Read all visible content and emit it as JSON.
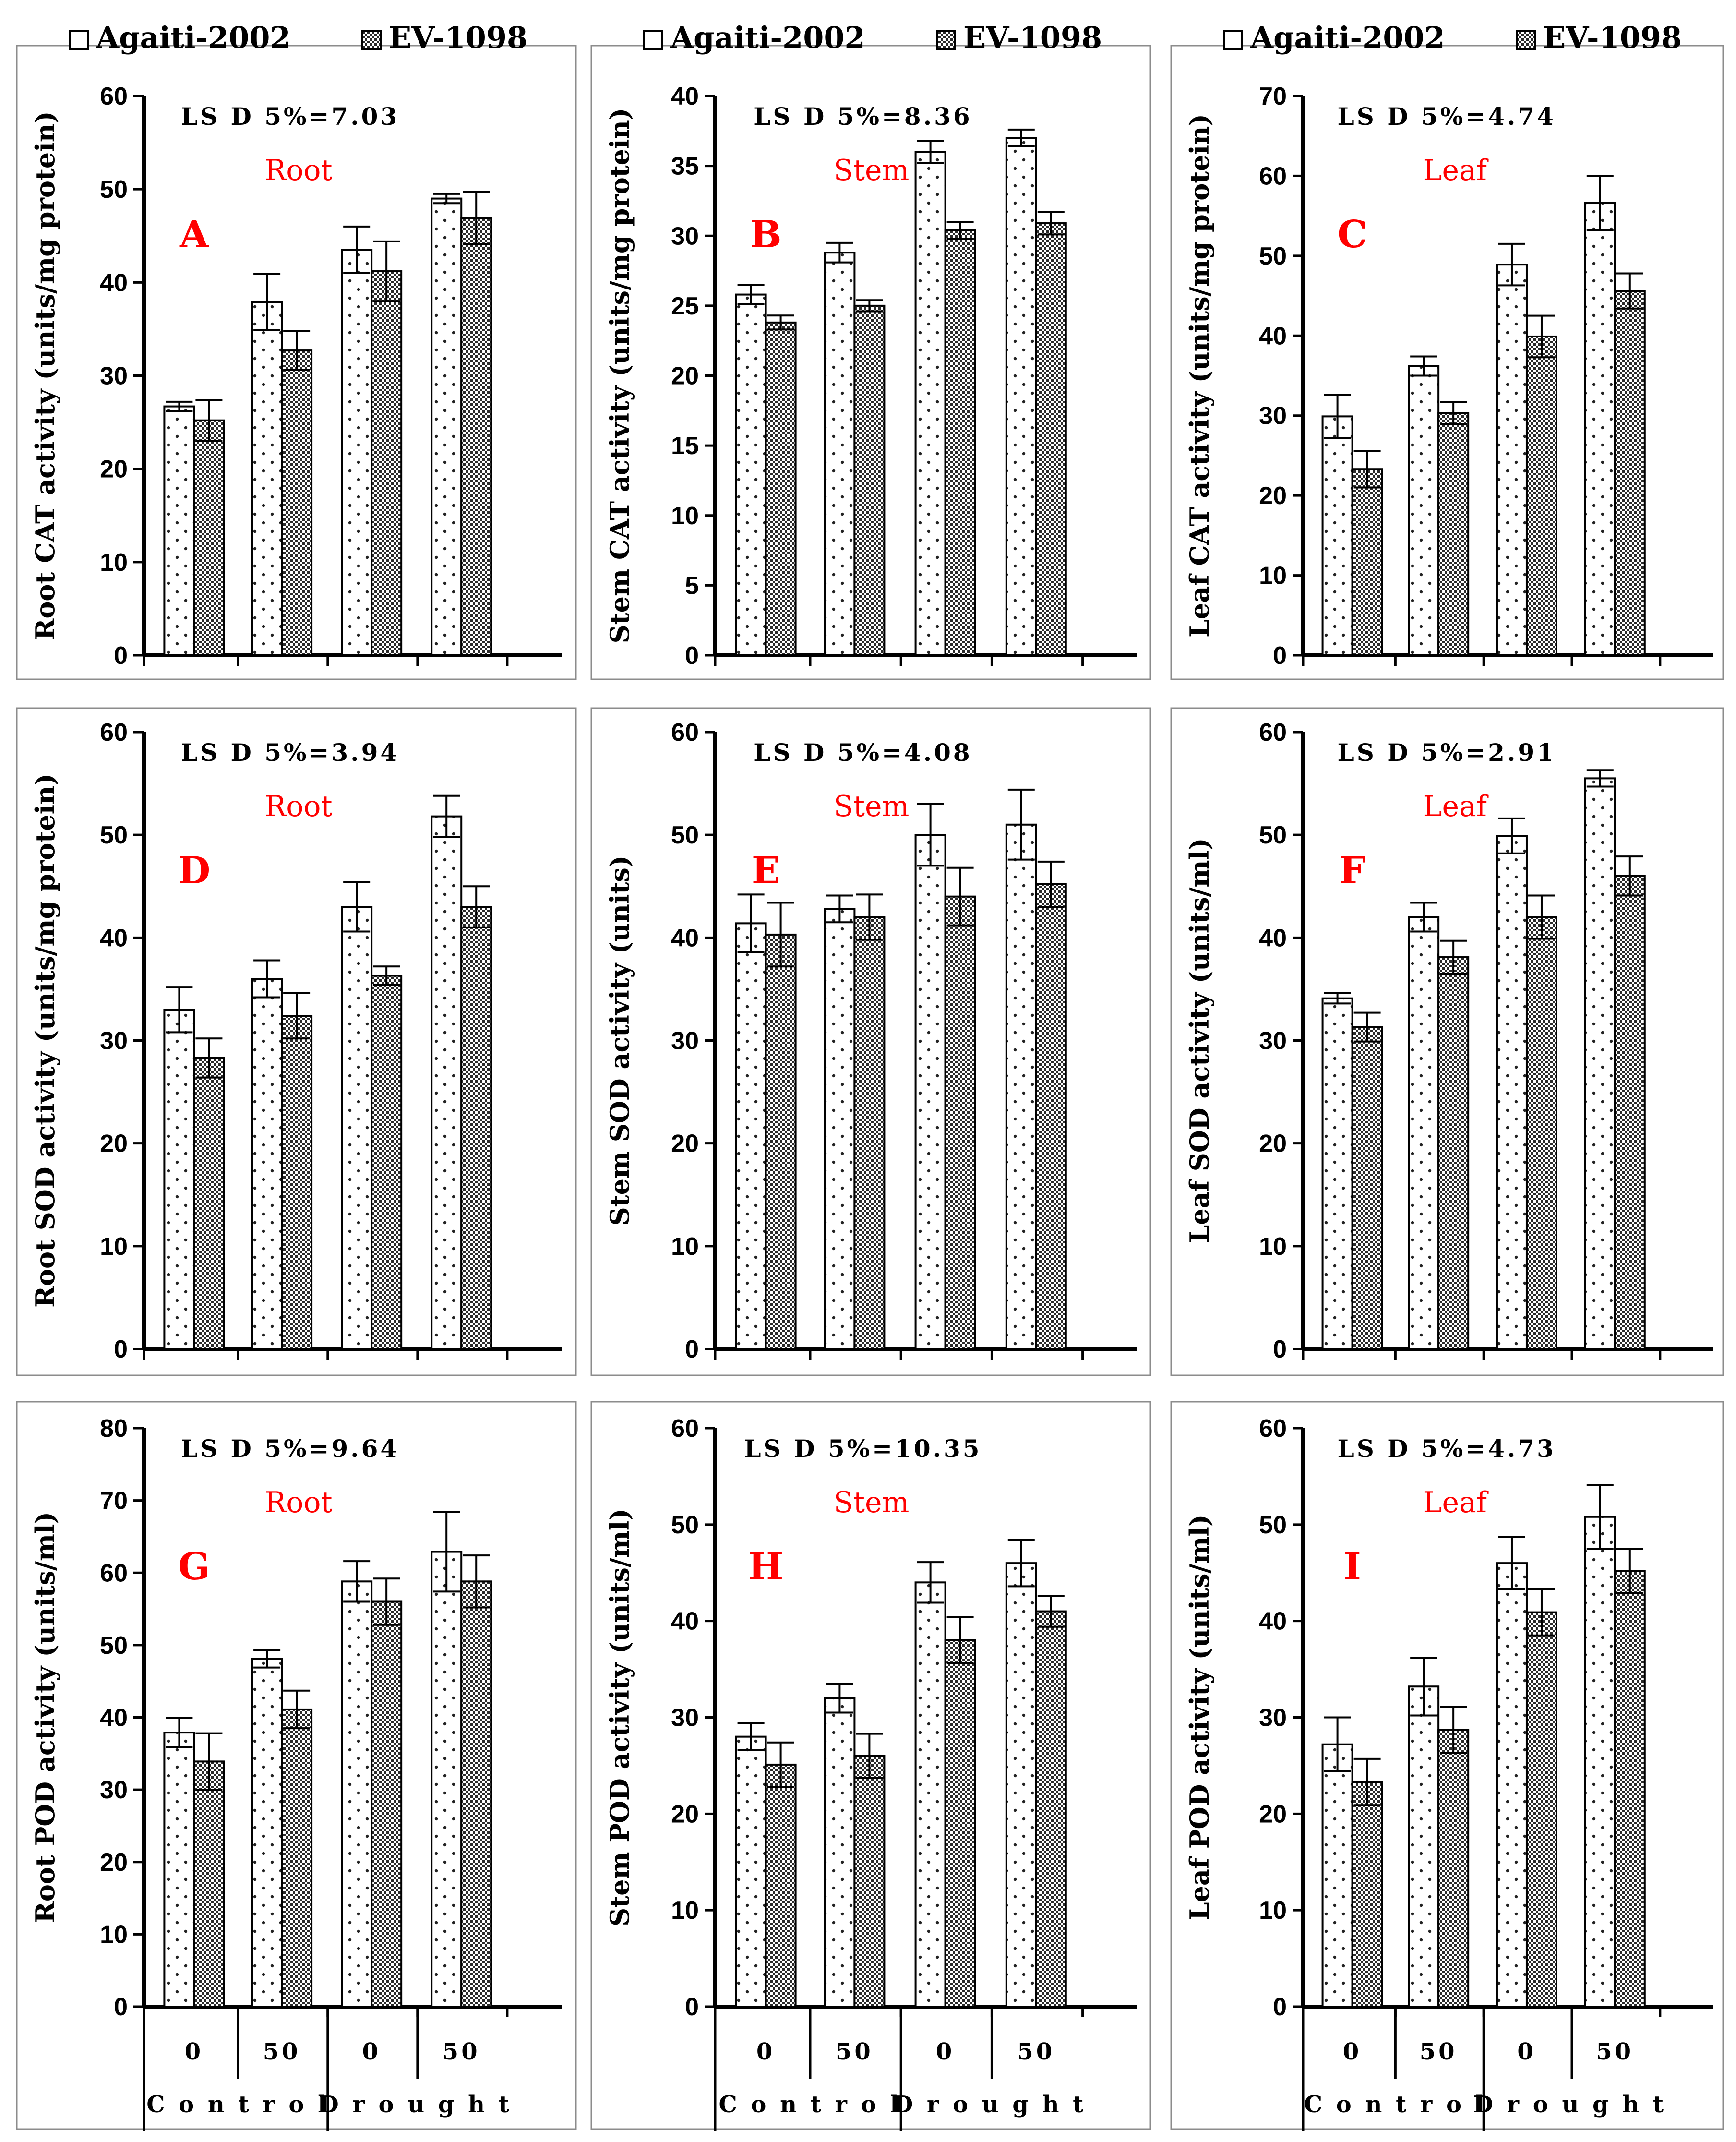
{
  "legend": {
    "series_a": "Agaiti-2002",
    "series_b": "EV-1098"
  },
  "x_axis": {
    "levels": [
      "0",
      "50",
      "0",
      "50"
    ],
    "groups": [
      "Control",
      "Drought"
    ],
    "group_labels_spaced": [
      "C o n t r o l",
      "D r o u g h t"
    ]
  },
  "chart_data": [
    {
      "type": "bar",
      "letter": "A",
      "organ": "Root",
      "lsd": "LS D 5%=7.03",
      "ylabel": "Root CAT activity (units/mg protein)",
      "ylim": [
        0,
        60
      ],
      "ystep": 10,
      "categories": [
        "Control 0",
        "Control 50",
        "Drought 0",
        "Drought 50"
      ],
      "series": [
        {
          "name": "Agaiti-2002",
          "values": [
            26.7,
            37.9,
            43.5,
            49.0
          ],
          "errors": [
            0.5,
            3.0,
            2.5,
            0.5
          ]
        },
        {
          "name": "EV-1098",
          "values": [
            25.2,
            32.7,
            41.2,
            46.9
          ],
          "errors": [
            2.2,
            2.1,
            3.2,
            2.8
          ]
        }
      ]
    },
    {
      "type": "bar",
      "letter": "B",
      "organ": "Stem",
      "lsd": "LS D 5%=8.36",
      "ylabel": "Stem CAT activity (units/mg protein)",
      "ylim": [
        0,
        40
      ],
      "ystep": 5,
      "categories": [
        "Control 0",
        "Control 50",
        "Drought 0",
        "Drought 50"
      ],
      "series": [
        {
          "name": "Agaiti-2002",
          "values": [
            25.8,
            28.8,
            36.0,
            37.0
          ],
          "errors": [
            0.7,
            0.7,
            0.8,
            0.6
          ]
        },
        {
          "name": "EV-1098",
          "values": [
            23.8,
            25.0,
            30.4,
            30.9
          ],
          "errors": [
            0.5,
            0.4,
            0.6,
            0.8
          ]
        }
      ]
    },
    {
      "type": "bar",
      "letter": "C",
      "organ": "Leaf",
      "lsd": "LS D 5%=4.74",
      "ylabel": "Leaf CAT activity (units/mg protein)",
      "ylim": [
        0,
        70
      ],
      "ystep": 10,
      "categories": [
        "Control 0",
        "Control 50",
        "Drought 0",
        "Drought 50"
      ],
      "series": [
        {
          "name": "Agaiti-2002",
          "values": [
            29.9,
            36.2,
            48.9,
            56.6
          ],
          "errors": [
            2.7,
            1.2,
            2.6,
            3.4
          ]
        },
        {
          "name": "EV-1098",
          "values": [
            23.3,
            30.3,
            39.9,
            45.6
          ],
          "errors": [
            2.3,
            1.4,
            2.6,
            2.2
          ]
        }
      ]
    },
    {
      "type": "bar",
      "letter": "D",
      "organ": "Root",
      "lsd": "LS D 5%=3.94",
      "ylabel": "Root SOD activity (units/mg protein)",
      "ylim": [
        0,
        60
      ],
      "ystep": 10,
      "categories": [
        "Control 0",
        "Control 50",
        "Drought 0",
        "Drought 50"
      ],
      "series": [
        {
          "name": "Agaiti-2002",
          "values": [
            33.0,
            36.0,
            43.0,
            51.8
          ],
          "errors": [
            2.2,
            1.8,
            2.4,
            2.0
          ]
        },
        {
          "name": "EV-1098",
          "values": [
            28.3,
            32.4,
            36.3,
            43.0
          ],
          "errors": [
            1.9,
            2.2,
            0.9,
            2.0
          ]
        }
      ]
    },
    {
      "type": "bar",
      "letter": "E",
      "organ": "Stem",
      "lsd": "LS D 5%=4.08",
      "ylabel": "Stem SOD activity (units)",
      "ylim": [
        0,
        60
      ],
      "ystep": 10,
      "categories": [
        "Control 0",
        "Control 50",
        "Drought 0",
        "Drought 50"
      ],
      "series": [
        {
          "name": "Agaiti-2002",
          "values": [
            41.4,
            42.8,
            50.0,
            51.0
          ],
          "errors": [
            2.8,
            1.3,
            3.0,
            3.4
          ]
        },
        {
          "name": "EV-1098",
          "values": [
            40.3,
            42.0,
            44.0,
            45.2
          ],
          "errors": [
            3.1,
            2.2,
            2.8,
            2.2
          ]
        }
      ]
    },
    {
      "type": "bar",
      "letter": "F",
      "organ": "Leaf",
      "lsd": "LS D 5%=2.91",
      "ylabel": "Leaf SOD activity (units/ml)",
      "ylim": [
        0,
        60
      ],
      "ystep": 10,
      "categories": [
        "Control 0",
        "Control 50",
        "Drought 0",
        "Drought 50"
      ],
      "series": [
        {
          "name": "Agaiti-2002",
          "values": [
            34.1,
            42.0,
            49.9,
            55.5
          ],
          "errors": [
            0.5,
            1.4,
            1.7,
            0.8
          ]
        },
        {
          "name": "EV-1098",
          "values": [
            31.3,
            38.1,
            42.0,
            46.0
          ],
          "errors": [
            1.4,
            1.6,
            2.1,
            1.9
          ]
        }
      ]
    },
    {
      "type": "bar",
      "letter": "G",
      "organ": "Root",
      "lsd": "LS D 5%=9.64",
      "ylabel": "Root POD activity (units/ml)",
      "ylim": [
        0,
        80
      ],
      "ystep": 10,
      "categories": [
        "Control 0",
        "Control 50",
        "Drought 0",
        "Drought 50"
      ],
      "series": [
        {
          "name": "Agaiti-2002",
          "values": [
            37.9,
            48.1,
            58.8,
            62.9
          ],
          "errors": [
            2.0,
            1.2,
            2.8,
            5.5
          ]
        },
        {
          "name": "EV-1098",
          "values": [
            33.9,
            41.1,
            56.0,
            58.8
          ],
          "errors": [
            3.9,
            2.6,
            3.2,
            3.6
          ]
        }
      ]
    },
    {
      "type": "bar",
      "letter": "H",
      "organ": "Stem",
      "lsd": "LS D 5%=10.35",
      "ylabel": "Stem POD activity (units/ml)",
      "ylim": [
        0,
        60
      ],
      "ystep": 10,
      "categories": [
        "Control 0",
        "Control 50",
        "Drought 0",
        "Drought 50"
      ],
      "series": [
        {
          "name": "Agaiti-2002",
          "values": [
            28.0,
            32.0,
            44.0,
            46.0
          ],
          "errors": [
            1.4,
            1.5,
            2.1,
            2.4
          ]
        },
        {
          "name": "EV-1098",
          "values": [
            25.1,
            26.0,
            38.0,
            41.0
          ],
          "errors": [
            2.3,
            2.3,
            2.4,
            1.6
          ]
        }
      ]
    },
    {
      "type": "bar",
      "letter": "I",
      "organ": "Leaf",
      "lsd": "LS D 5%=4.73",
      "ylabel": "Leaf POD activity (units/ml)",
      "ylim": [
        0,
        60
      ],
      "ystep": 10,
      "categories": [
        "Control 0",
        "Control 50",
        "Drought 0",
        "Drought 50"
      ],
      "series": [
        {
          "name": "Agaiti-2002",
          "values": [
            27.2,
            33.2,
            46.0,
            50.8
          ],
          "errors": [
            2.8,
            3.0,
            2.7,
            3.3
          ]
        },
        {
          "name": "EV-1098",
          "values": [
            23.3,
            28.7,
            40.9,
            45.2
          ],
          "errors": [
            2.4,
            2.4,
            2.4,
            2.3
          ]
        }
      ]
    }
  ]
}
